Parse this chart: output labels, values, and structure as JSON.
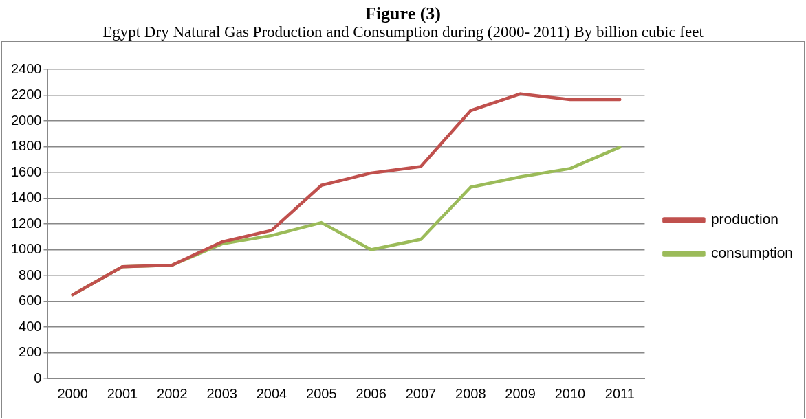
{
  "chart_data": {
    "type": "line",
    "title": "Figure (3)",
    "subtitle": "Egypt Dry Natural Gas Production and Consumption during (2000- 2011) By billion cubic feet",
    "categories": [
      "2000",
      "2001",
      "2002",
      "2003",
      "2004",
      "2005",
      "2006",
      "2007",
      "2008",
      "2009",
      "2010",
      "2011"
    ],
    "series": [
      {
        "name": "production",
        "color": "#c0504d",
        "values": [
          650,
          868,
          880,
          1060,
          1150,
          1500,
          1595,
          1645,
          2080,
          2210,
          2165,
          2165
        ]
      },
      {
        "name": "consumption",
        "color": "#9bbb59",
        "values": [
          650,
          868,
          880,
          1045,
          1110,
          1210,
          1000,
          1080,
          1485,
          1565,
          1630,
          1795
        ]
      }
    ],
    "ylim": [
      0,
      2400
    ],
    "yticks": [
      0,
      200,
      400,
      600,
      800,
      1000,
      1200,
      1400,
      1600,
      1800,
      2000,
      2200,
      2400
    ],
    "grid": "y",
    "legend": "right",
    "marker": "none",
    "line_style": "solid"
  }
}
